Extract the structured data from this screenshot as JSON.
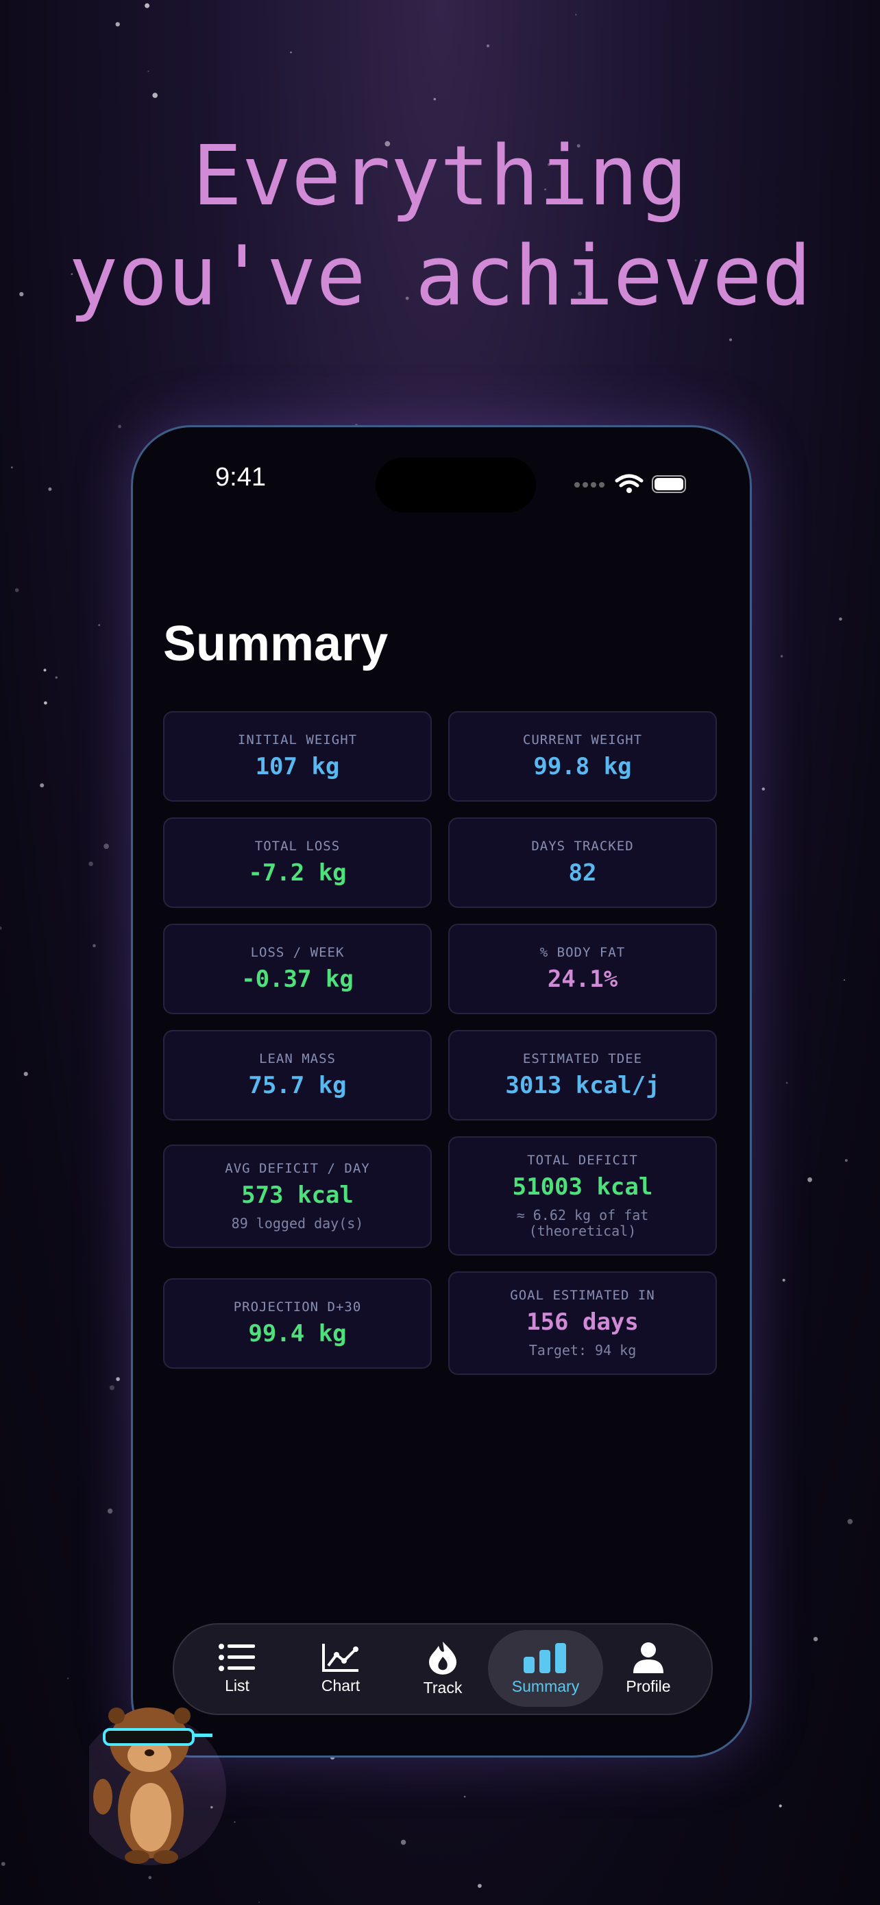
{
  "headline": [
    "Everything",
    "you've achieved"
  ],
  "status_bar": {
    "time": "9:41"
  },
  "screen": {
    "title": "Summary",
    "cards": [
      {
        "label": "INITIAL WEIGHT",
        "value": "107 kg",
        "color": "#5ab8f0"
      },
      {
        "label": "CURRENT WEIGHT",
        "value": "99.8 kg",
        "color": "#5ab8f0"
      },
      {
        "label": "TOTAL LOSS",
        "value": "-7.2 kg",
        "color": "#4ee07a"
      },
      {
        "label": "DAYS TRACKED",
        "value": "82",
        "color": "#5ab8f0"
      },
      {
        "label": "LOSS / WEEK",
        "value": "-0.37 kg",
        "color": "#4ee07a"
      },
      {
        "label": "% BODY FAT",
        "value": "24.1%",
        "color": "#d08ad6"
      },
      {
        "label": "LEAN MASS",
        "value": "75.7 kg",
        "color": "#5ab8f0"
      },
      {
        "label": "ESTIMATED TDEE",
        "value": "3013 kcal/j",
        "color": "#5ab8f0"
      },
      {
        "label": "AVG DEFICIT / DAY",
        "value": "573 kcal",
        "note": "89 logged day(s)",
        "color": "#4ee07a"
      },
      {
        "label": "TOTAL DEFICIT",
        "value": "51003 kcal",
        "note": "≈ 6.62 kg of fat\n(theoretical)",
        "color": "#4ee07a"
      },
      {
        "label": "PROJECTION D+30",
        "value": "99.4 kg",
        "color": "#4ee07a"
      },
      {
        "label": "GOAL ESTIMATED IN",
        "value": "156 days",
        "note": "Target: 94 kg",
        "color": "#d08ad6"
      }
    ]
  },
  "tab_bar": {
    "items": [
      "List",
      "Chart",
      "Track",
      "Summary",
      "Profile"
    ],
    "active": "Summary"
  }
}
